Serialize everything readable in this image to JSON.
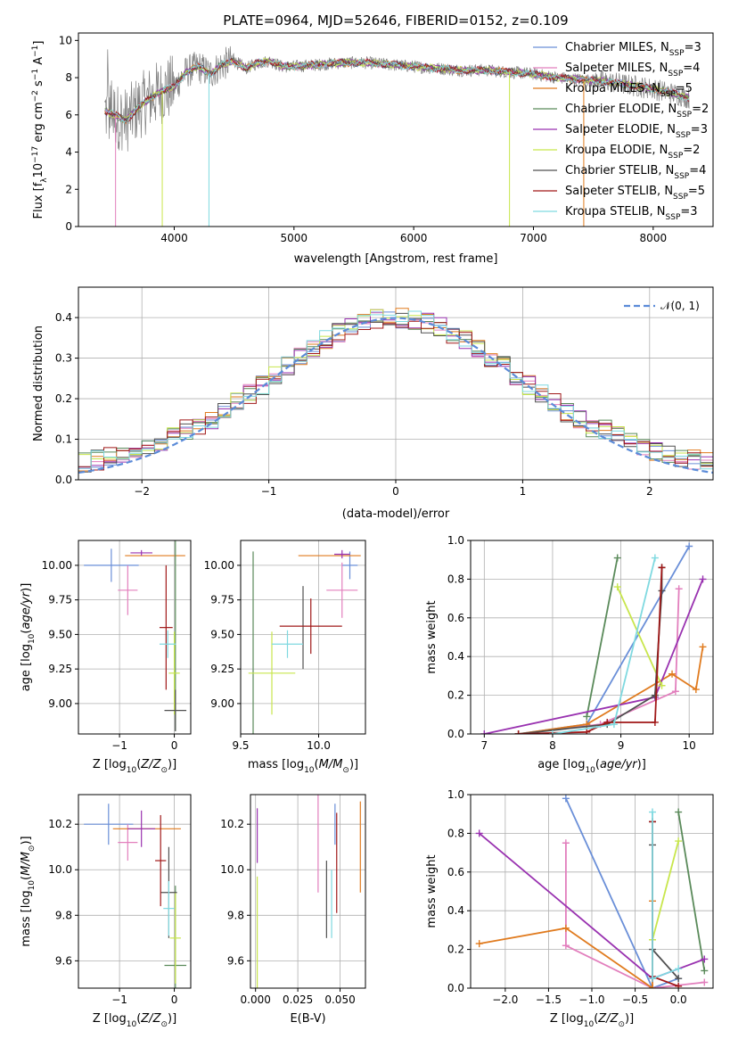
{
  "figure": {
    "title": "PLATE=0964, MJD=52646, FIBERID=0152, z=0.109"
  },
  "colors": {
    "Chabrier MILES": "#6a8fd8",
    "Salpeter MILES": "#e27fbd",
    "Kroupa MILES": "#e07b1f",
    "Chabrier ELODIE": "#5a8a5a",
    "Salpeter ELODIE": "#9932b0",
    "Kroupa ELODIE": "#c8e64c",
    "Chabrier STELIB": "#505050",
    "Salpeter STELIB": "#a01818",
    "Kroupa STELIB": "#7fd9e0",
    "data": "#808080"
  },
  "chart_data": [
    {
      "id": "spectrum",
      "type": "line",
      "title": "PLATE=0964, MJD=52646, FIBERID=0152, z=0.109",
      "xlabel": "wavelength [Angstrom, rest frame]",
      "ylabel": "Flux [f_λ10^-17 erg cm^-2 s^-1 A^-1]",
      "xlim": [
        3200,
        8500
      ],
      "ylim": [
        0,
        10.4
      ],
      "xticks": [
        4000,
        5000,
        6000,
        7000,
        8000
      ],
      "yticks": [
        0,
        2,
        4,
        6,
        8,
        10
      ],
      "grid": false,
      "legend_position": "top-right",
      "legend": [
        {
          "name": "Chabrier MILES",
          "nssp": "3"
        },
        {
          "name": "Salpeter MILES",
          "nssp": "4"
        },
        {
          "name": "Kroupa MILES",
          "nssp": "5"
        },
        {
          "name": "Chabrier ELODIE",
          "nssp": "2"
        },
        {
          "name": "Salpeter ELODIE",
          "nssp": "3"
        },
        {
          "name": "Kroupa ELODIE",
          "nssp": "2"
        },
        {
          "name": "Chabrier STELIB",
          "nssp": "4"
        },
        {
          "name": "Salpeter STELIB",
          "nssp": "5"
        },
        {
          "name": "Kroupa STELIB",
          "nssp": "3"
        }
      ],
      "continuum": {
        "x": [
          3420,
          3500,
          3600,
          3700,
          3800,
          3900,
          4000,
          4100,
          4200,
          4300,
          4400,
          4500,
          4600,
          4700,
          4800,
          4900,
          5000,
          5200,
          5400,
          5600,
          5800,
          6000,
          6200,
          6400,
          6600,
          6800,
          7000,
          7200,
          7400,
          7600,
          7800,
          8000,
          8200,
          8300
        ],
        "y": [
          6.2,
          6.0,
          5.7,
          6.4,
          6.9,
          7.3,
          7.5,
          8.3,
          8.6,
          8.2,
          8.7,
          8.9,
          8.5,
          8.8,
          8.9,
          8.6,
          8.6,
          8.7,
          8.8,
          8.8,
          8.7,
          8.6,
          8.5,
          8.4,
          8.4,
          8.3,
          8.2,
          8.0,
          7.9,
          7.8,
          7.6,
          7.4,
          7.1,
          6.9
        ]
      }
    },
    {
      "id": "residuals",
      "type": "bar",
      "xlabel": "(data-model)/error",
      "ylabel": "Normed distribution",
      "xlim": [
        -2.5,
        2.5
      ],
      "ylim": [
        0,
        0.475
      ],
      "xticks": [
        -2,
        -1,
        0,
        1,
        2
      ],
      "yticks": [
        0.0,
        0.1,
        0.2,
        0.3,
        0.4
      ],
      "grid": true,
      "legend_position": "top-right",
      "legend_label": "𝒩(0, 1)",
      "bin_width": 0.1,
      "reference_curve": {
        "type": "gaussian",
        "mean": 0,
        "sigma": 1
      }
    },
    {
      "id": "age-vs-Z",
      "type": "scatter",
      "xlabel": "Z [log10(Z/Z⊙)]",
      "ylabel": "age  [log10(age/yr)]",
      "xlim": [
        -1.75,
        0.3
      ],
      "ylim": [
        8.78,
        10.18
      ],
      "xticks": [
        -1,
        0
      ],
      "yticks": [
        9.0,
        9.25,
        9.5,
        9.75,
        10.0
      ],
      "grid": true,
      "points": [
        {
          "series": "Chabrier MILES",
          "x": -1.15,
          "xerr": 0.5,
          "y": 10.0,
          "yerr": 0.12
        },
        {
          "series": "Salpeter MILES",
          "x": -0.85,
          "xerr": 0.18,
          "y": 9.82,
          "yerr": 0.18
        },
        {
          "series": "Kroupa MILES",
          "x": -0.35,
          "xerr": 0.55,
          "y": 10.07,
          "yerr": 0.0
        },
        {
          "series": "Chabrier ELODIE",
          "x": 0.02,
          "xerr": 0.0,
          "y": 9.55,
          "yerr": 0.75
        },
        {
          "series": "Salpeter ELODIE",
          "x": -0.6,
          "xerr": 0.2,
          "y": 10.09,
          "yerr": 0.02
        },
        {
          "series": "Kroupa ELODIE",
          "x": 0.0,
          "xerr": 0.1,
          "y": 9.22,
          "yerr": 0.3
        },
        {
          "series": "Chabrier STELIB",
          "x": 0.02,
          "xerr": 0.2,
          "y": 8.95,
          "yerr": 0.15
        },
        {
          "series": "Salpeter STELIB",
          "x": -0.15,
          "xerr": 0.12,
          "y": 9.55,
          "yerr": 0.45
        },
        {
          "series": "Kroupa STELIB",
          "x": -0.12,
          "xerr": 0.15,
          "y": 9.43,
          "yerr": 0.1
        }
      ]
    },
    {
      "id": "age-vs-mass",
      "type": "scatter",
      "xlabel": "mass [log10(M/M⊙)]",
      "xlim": [
        9.5,
        10.3
      ],
      "ylim": [
        8.78,
        10.18
      ],
      "xticks": [
        9.5,
        10.0
      ],
      "yticks": [
        9.0,
        9.25,
        9.5,
        9.75,
        10.0
      ],
      "grid": true,
      "points": [
        {
          "series": "Chabrier MILES",
          "x": 10.2,
          "xerr": 0.05,
          "y": 10.0,
          "yerr": 0.1
        },
        {
          "series": "Salpeter MILES",
          "x": 10.15,
          "xerr": 0.1,
          "y": 9.82,
          "yerr": 0.2
        },
        {
          "series": "Kroupa MILES",
          "x": 10.07,
          "xerr": 0.2,
          "y": 10.07,
          "yerr": 0.0
        },
        {
          "series": "Chabrier ELODIE",
          "x": 9.58,
          "xerr": 0.0,
          "y": 9.35,
          "yerr": 0.75
        },
        {
          "series": "Salpeter ELODIE",
          "x": 10.15,
          "xerr": 0.05,
          "y": 10.08,
          "yerr": 0.03
        },
        {
          "series": "Kroupa ELODIE",
          "x": 9.7,
          "xerr": 0.15,
          "y": 9.22,
          "yerr": 0.3
        },
        {
          "series": "Chabrier STELIB",
          "x": 9.9,
          "xerr": 0.0,
          "y": 9.55,
          "yerr": 0.3
        },
        {
          "series": "Salpeter STELIB",
          "x": 9.95,
          "xerr": 0.2,
          "y": 9.56,
          "yerr": 0.2
        },
        {
          "series": "Kroupa STELIB",
          "x": 9.8,
          "xerr": 0.1,
          "y": 9.43,
          "yerr": 0.1
        }
      ]
    },
    {
      "id": "weight-vs-age",
      "type": "line",
      "xlabel": "age  [log10(age/yr)]",
      "ylabel": "mass weight",
      "xlim": [
        6.8,
        10.35
      ],
      "ylim": [
        0,
        1.0
      ],
      "xticks": [
        7,
        8,
        9,
        10
      ],
      "yticks": [
        0.0,
        0.2,
        0.4,
        0.6,
        0.8,
        1.0
      ],
      "grid": true,
      "series": [
        {
          "name": "Chabrier MILES",
          "x": [
            7.5,
            8.5,
            10.0
          ],
          "y": [
            0.0,
            0.05,
            0.97
          ]
        },
        {
          "name": "Salpeter MILES",
          "x": [
            7.5,
            8.7,
            9.8,
            9.85
          ],
          "y": [
            0.0,
            0.05,
            0.22,
            0.75
          ]
        },
        {
          "name": "Kroupa MILES",
          "x": [
            7.5,
            8.5,
            9.75,
            10.1,
            10.2
          ],
          "y": [
            0.0,
            0.05,
            0.31,
            0.23,
            0.45
          ]
        },
        {
          "name": "Chabrier ELODIE",
          "x": [
            8.5,
            8.95
          ],
          "y": [
            0.09,
            0.91
          ]
        },
        {
          "name": "Salpeter ELODIE",
          "x": [
            7.0,
            9.5,
            10.2
          ],
          "y": [
            0.0,
            0.19,
            0.8
          ]
        },
        {
          "name": "Kroupa ELODIE",
          "x": [
            8.95,
            9.6
          ],
          "y": [
            0.76,
            0.25
          ]
        },
        {
          "name": "Chabrier STELIB",
          "x": [
            7.5,
            8.8,
            9.5,
            9.6,
            9.6
          ],
          "y": [
            0.0,
            0.05,
            0.2,
            0.74,
            0.86
          ]
        },
        {
          "name": "Salpeter STELIB",
          "x": [
            7.5,
            8.5,
            8.8,
            9.5,
            9.6
          ],
          "y": [
            0.0,
            0.01,
            0.06,
            0.06,
            0.86
          ]
        },
        {
          "name": "Kroupa STELIB",
          "x": [
            8.0,
            8.9,
            9.5
          ],
          "y": [
            0.0,
            0.05,
            0.91
          ]
        }
      ]
    },
    {
      "id": "mass-vs-Z",
      "type": "scatter",
      "xlabel": "Z [log10(Z/Z⊙)]",
      "ylabel": "mass [log10(M/M⊙)]",
      "xlim": [
        -1.75,
        0.3
      ],
      "ylim": [
        9.48,
        10.33
      ],
      "xticks": [
        -1,
        0
      ],
      "yticks": [
        9.6,
        9.8,
        10.0,
        10.2
      ],
      "grid": true,
      "points": [
        {
          "series": "Chabrier MILES",
          "x": -1.2,
          "xerr": 0.45,
          "y": 10.2,
          "yerr": 0.09
        },
        {
          "series": "Salpeter MILES",
          "x": -0.85,
          "xerr": 0.18,
          "y": 10.12,
          "yerr": 0.08
        },
        {
          "series": "Kroupa MILES",
          "x": -0.5,
          "xerr": 0.62,
          "y": 10.18,
          "yerr": 0.0
        },
        {
          "series": "Chabrier ELODIE",
          "x": 0.02,
          "xerr": 0.2,
          "y": 9.58,
          "yerr": 0.35
        },
        {
          "series": "Salpeter ELODIE",
          "x": -0.6,
          "xerr": 0.25,
          "y": 10.18,
          "yerr": 0.08
        },
        {
          "series": "Kroupa ELODIE",
          "x": 0.02,
          "xerr": 0.1,
          "y": 9.7,
          "yerr": 0.2
        },
        {
          "series": "Chabrier STELIB",
          "x": -0.1,
          "xerr": 0.15,
          "y": 9.9,
          "yerr": 0.2
        },
        {
          "series": "Salpeter STELIB",
          "x": -0.25,
          "xerr": 0.1,
          "y": 10.04,
          "yerr": 0.2
        },
        {
          "series": "Kroupa STELIB",
          "x": -0.1,
          "xerr": 0.1,
          "y": 9.83,
          "yerr": 0.12
        }
      ]
    },
    {
      "id": "mass-vs-ebv",
      "type": "scatter",
      "xlabel": "E(B-V)",
      "xlim": [
        -0.003,
        0.065
      ],
      "ylim": [
        9.48,
        10.33
      ],
      "xticks": [
        0.0,
        0.025,
        0.05
      ],
      "yticks": [
        9.6,
        9.8,
        10.0,
        10.2
      ],
      "grid": true,
      "points": [
        {
          "series": "Chabrier MILES",
          "x": 0.047,
          "y": 10.2,
          "yerr": 0.09
        },
        {
          "series": "Salpeter MILES",
          "x": 0.037,
          "y": 10.12,
          "yerr": 0.22
        },
        {
          "series": "Kroupa MILES",
          "x": 0.062,
          "y": 10.1,
          "yerr": 0.2
        },
        {
          "series": "Chabrier ELODIE",
          "x": 0.0,
          "y": 9.8,
          "yerr": 0.0
        },
        {
          "series": "Salpeter ELODIE",
          "x": 0.001,
          "y": 10.15,
          "yerr": 0.12
        },
        {
          "series": "Kroupa ELODIE",
          "x": 0.001,
          "y": 9.72,
          "yerr": 0.25
        },
        {
          "series": "Chabrier STELIB",
          "x": 0.042,
          "y": 9.87,
          "yerr": 0.17
        },
        {
          "series": "Salpeter STELIB",
          "x": 0.048,
          "y": 10.03,
          "yerr": 0.22
        },
        {
          "series": "Kroupa STELIB",
          "x": 0.045,
          "y": 9.85,
          "yerr": 0.15
        }
      ]
    },
    {
      "id": "weight-vs-Z",
      "type": "line",
      "xlabel": "Z [log10(Z/Z⊙)]",
      "ylabel": "mass weight",
      "xlim": [
        -2.4,
        0.4
      ],
      "ylim": [
        0,
        1.0
      ],
      "xticks": [
        -2.0,
        -1.5,
        -1.0,
        -0.5,
        0.0
      ],
      "yticks": [
        0.0,
        0.2,
        0.4,
        0.6,
        0.8,
        1.0
      ],
      "grid": true,
      "series": [
        {
          "name": "Chabrier MILES",
          "x": [
            -1.3,
            -0.3,
            0.0
          ],
          "y": [
            0.98,
            0.0,
            0.05
          ]
        },
        {
          "name": "Salpeter MILES",
          "x": [
            -1.3,
            -1.3,
            -0.3,
            0.3
          ],
          "y": [
            0.75,
            0.22,
            0.0,
            0.03
          ]
        },
        {
          "name": "Kroupa MILES",
          "x": [
            -2.3,
            -1.3,
            -0.3,
            -0.3,
            -0.3
          ],
          "y": [
            0.23,
            0.31,
            0.0,
            0.05,
            0.45
          ]
        },
        {
          "name": "Chabrier ELODIE",
          "x": [
            0.0,
            0.3
          ],
          "y": [
            0.91,
            0.09
          ]
        },
        {
          "name": "Salpeter ELODIE",
          "x": [
            -2.3,
            -0.3,
            0.3
          ],
          "y": [
            0.8,
            0.05,
            0.15
          ]
        },
        {
          "name": "Kroupa ELODIE",
          "x": [
            -0.3,
            0.0
          ],
          "y": [
            0.25,
            0.76
          ]
        },
        {
          "name": "Chabrier STELIB",
          "x": [
            -0.3,
            -0.3,
            -0.3,
            0.0
          ],
          "y": [
            0.86,
            0.74,
            0.2,
            0.05
          ]
        },
        {
          "name": "Salpeter STELIB",
          "x": [
            -0.3,
            -0.3,
            -0.3,
            0.0
          ],
          "y": [
            0.86,
            0.05,
            0.06,
            0.01
          ]
        },
        {
          "name": "Kroupa STELIB",
          "x": [
            -0.3,
            -0.3,
            0.0
          ],
          "y": [
            0.91,
            0.05,
            0.1
          ]
        }
      ]
    }
  ]
}
